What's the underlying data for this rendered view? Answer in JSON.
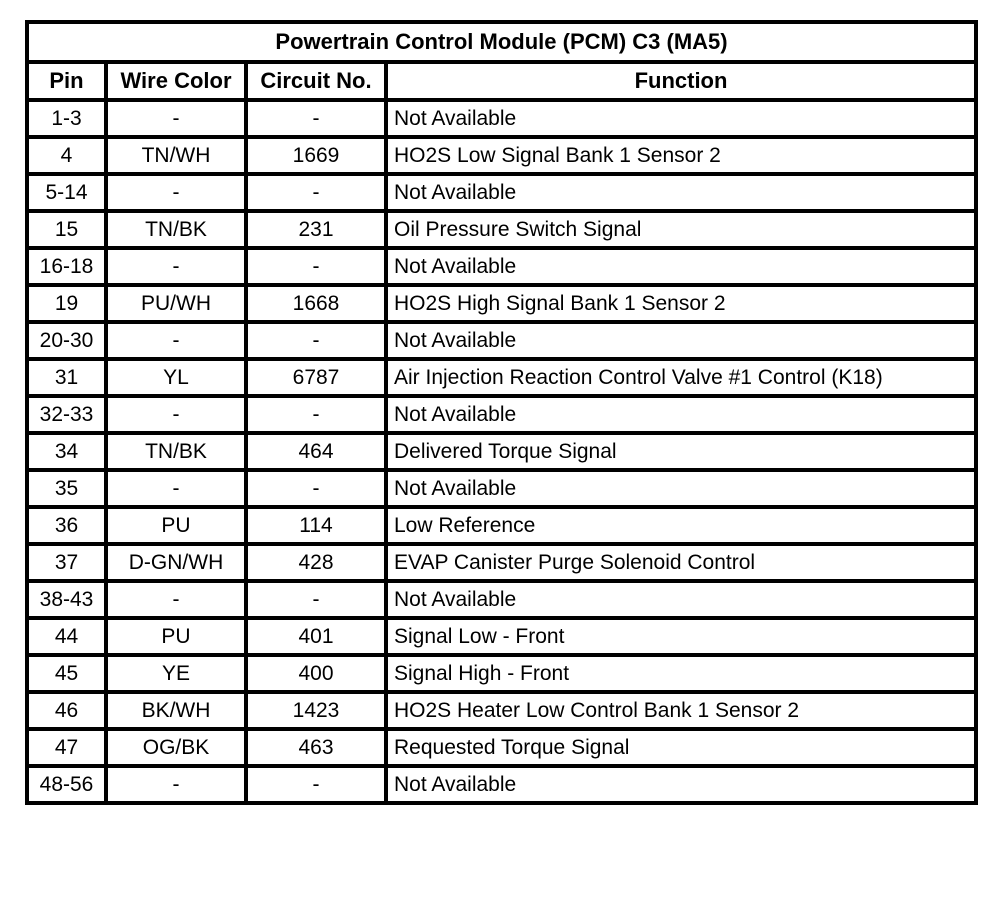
{
  "table": {
    "title": "Powertrain Control Module (PCM) C3 (MA5)",
    "columns": [
      "Pin",
      "Wire Color",
      "Circuit No.",
      "Function"
    ],
    "rows": [
      {
        "pin": "1-3",
        "wire_color": "-",
        "circuit_no": "-",
        "function": "Not Available"
      },
      {
        "pin": "4",
        "wire_color": "TN/WH",
        "circuit_no": "1669",
        "function": "HO2S Low Signal Bank 1 Sensor 2"
      },
      {
        "pin": "5-14",
        "wire_color": "-",
        "circuit_no": "-",
        "function": "Not Available"
      },
      {
        "pin": "15",
        "wire_color": "TN/BK",
        "circuit_no": "231",
        "function": "Oil Pressure Switch Signal"
      },
      {
        "pin": "16-18",
        "wire_color": "-",
        "circuit_no": "-",
        "function": "Not Available"
      },
      {
        "pin": "19",
        "wire_color": "PU/WH",
        "circuit_no": "1668",
        "function": "HO2S High Signal Bank 1 Sensor 2"
      },
      {
        "pin": "20-30",
        "wire_color": "-",
        "circuit_no": "-",
        "function": "Not Available"
      },
      {
        "pin": "31",
        "wire_color": "YL",
        "circuit_no": "6787",
        "function": "Air Injection Reaction Control Valve #1 Control (K18)"
      },
      {
        "pin": "32-33",
        "wire_color": "-",
        "circuit_no": "-",
        "function": "Not Available"
      },
      {
        "pin": "34",
        "wire_color": "TN/BK",
        "circuit_no": "464",
        "function": "Delivered Torque Signal"
      },
      {
        "pin": "35",
        "wire_color": "-",
        "circuit_no": "-",
        "function": "Not Available"
      },
      {
        "pin": "36",
        "wire_color": "PU",
        "circuit_no": "114",
        "function": "Low Reference"
      },
      {
        "pin": "37",
        "wire_color": "D-GN/WH",
        "circuit_no": "428",
        "function": "EVAP Canister Purge Solenoid Control"
      },
      {
        "pin": "38-43",
        "wire_color": "-",
        "circuit_no": "-",
        "function": "Not Available"
      },
      {
        "pin": "44",
        "wire_color": "PU",
        "circuit_no": "401",
        "function": "Signal Low - Front"
      },
      {
        "pin": "45",
        "wire_color": "YE",
        "circuit_no": "400",
        "function": "Signal High - Front"
      },
      {
        "pin": "46",
        "wire_color": "BK/WH",
        "circuit_no": "1423",
        "function": "HO2S Heater Low Control Bank 1 Sensor 2"
      },
      {
        "pin": "47",
        "wire_color": "OG/BK",
        "circuit_no": "463",
        "function": "Requested Torque Signal"
      },
      {
        "pin": "48-56",
        "wire_color": "-",
        "circuit_no": "-",
        "function": "Not Available"
      }
    ],
    "colors": {
      "border": "#000000",
      "background": "#ffffff",
      "text": "#000000"
    }
  }
}
